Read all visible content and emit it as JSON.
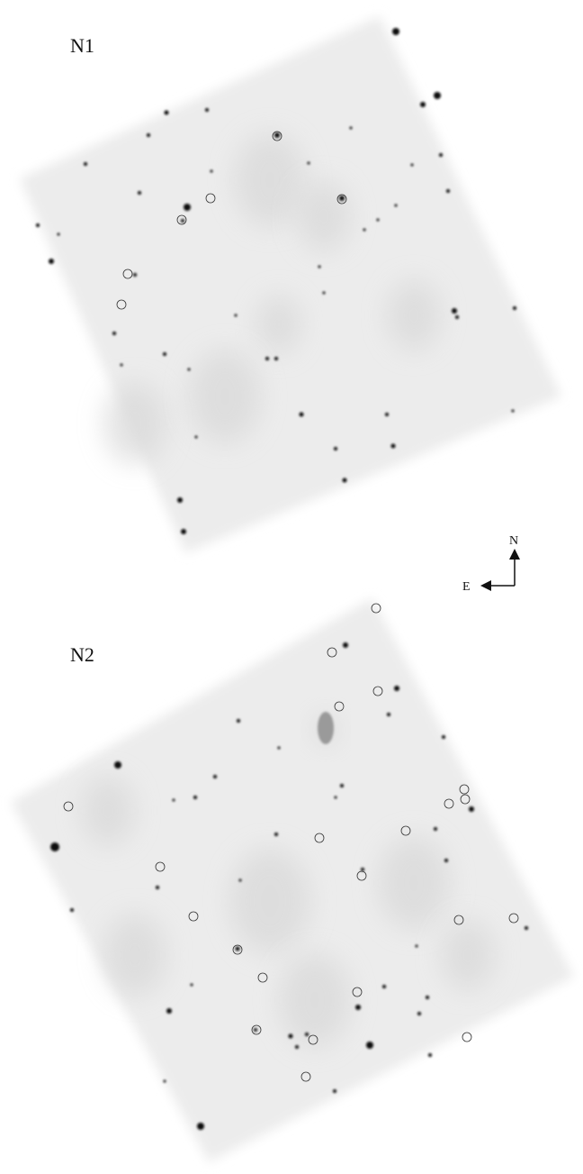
{
  "panels": [
    {
      "label": "N1"
    },
    {
      "label": "N2"
    }
  ],
  "compass": {
    "north": "N",
    "east": "E"
  }
}
